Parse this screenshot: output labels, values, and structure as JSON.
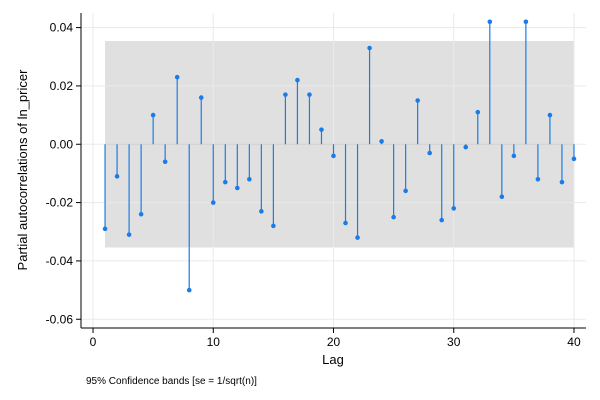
{
  "chart_data": {
    "type": "scatter",
    "style": "spike plot (needles from zero) with confidence band",
    "xlabel": "Lag",
    "ylabel": "Partial autocorrelations of ln_pricer",
    "note": "95% Confidence bands [se = 1/sqrt(n)]",
    "xlim": [
      -1,
      41
    ],
    "ylim": [
      -0.063,
      0.045
    ],
    "xticks": [
      0,
      10,
      20,
      30,
      40
    ],
    "yticks": [
      -0.06,
      -0.04,
      -0.02,
      0.0,
      0.02,
      0.04
    ],
    "xtick_labels": [
      "0",
      "10",
      "20",
      "30",
      "40"
    ],
    "ytick_labels": [
      "-0.06",
      "-0.04",
      "-0.02",
      "0.00",
      "0.02",
      "0.04"
    ],
    "confidence_band": {
      "lower": -0.0354,
      "upper": 0.0354,
      "x_from": 1,
      "x_to": 40
    },
    "grid": true,
    "legend": "none",
    "colors": {
      "spike": "#1a7ce8",
      "band": "#e0e0e0",
      "grid": "#eaeaea"
    },
    "x": [
      1,
      2,
      3,
      4,
      5,
      6,
      7,
      8,
      9,
      10,
      11,
      12,
      13,
      14,
      15,
      16,
      17,
      18,
      19,
      20,
      21,
      22,
      23,
      24,
      25,
      26,
      27,
      28,
      29,
      30,
      31,
      32,
      33,
      34,
      35,
      36,
      37,
      38,
      39,
      40
    ],
    "values": [
      -0.029,
      -0.011,
      -0.031,
      -0.024,
      0.01,
      -0.006,
      0.023,
      -0.05,
      0.016,
      -0.02,
      -0.013,
      -0.015,
      -0.012,
      -0.023,
      -0.028,
      0.017,
      0.022,
      0.017,
      0.005,
      -0.004,
      -0.027,
      -0.032,
      0.033,
      0.001,
      -0.025,
      -0.016,
      0.015,
      -0.003,
      -0.026,
      -0.022,
      -0.001,
      0.011,
      0.042,
      -0.018,
      -0.004,
      0.042,
      -0.012,
      0.01,
      -0.013,
      -0.005
    ]
  }
}
